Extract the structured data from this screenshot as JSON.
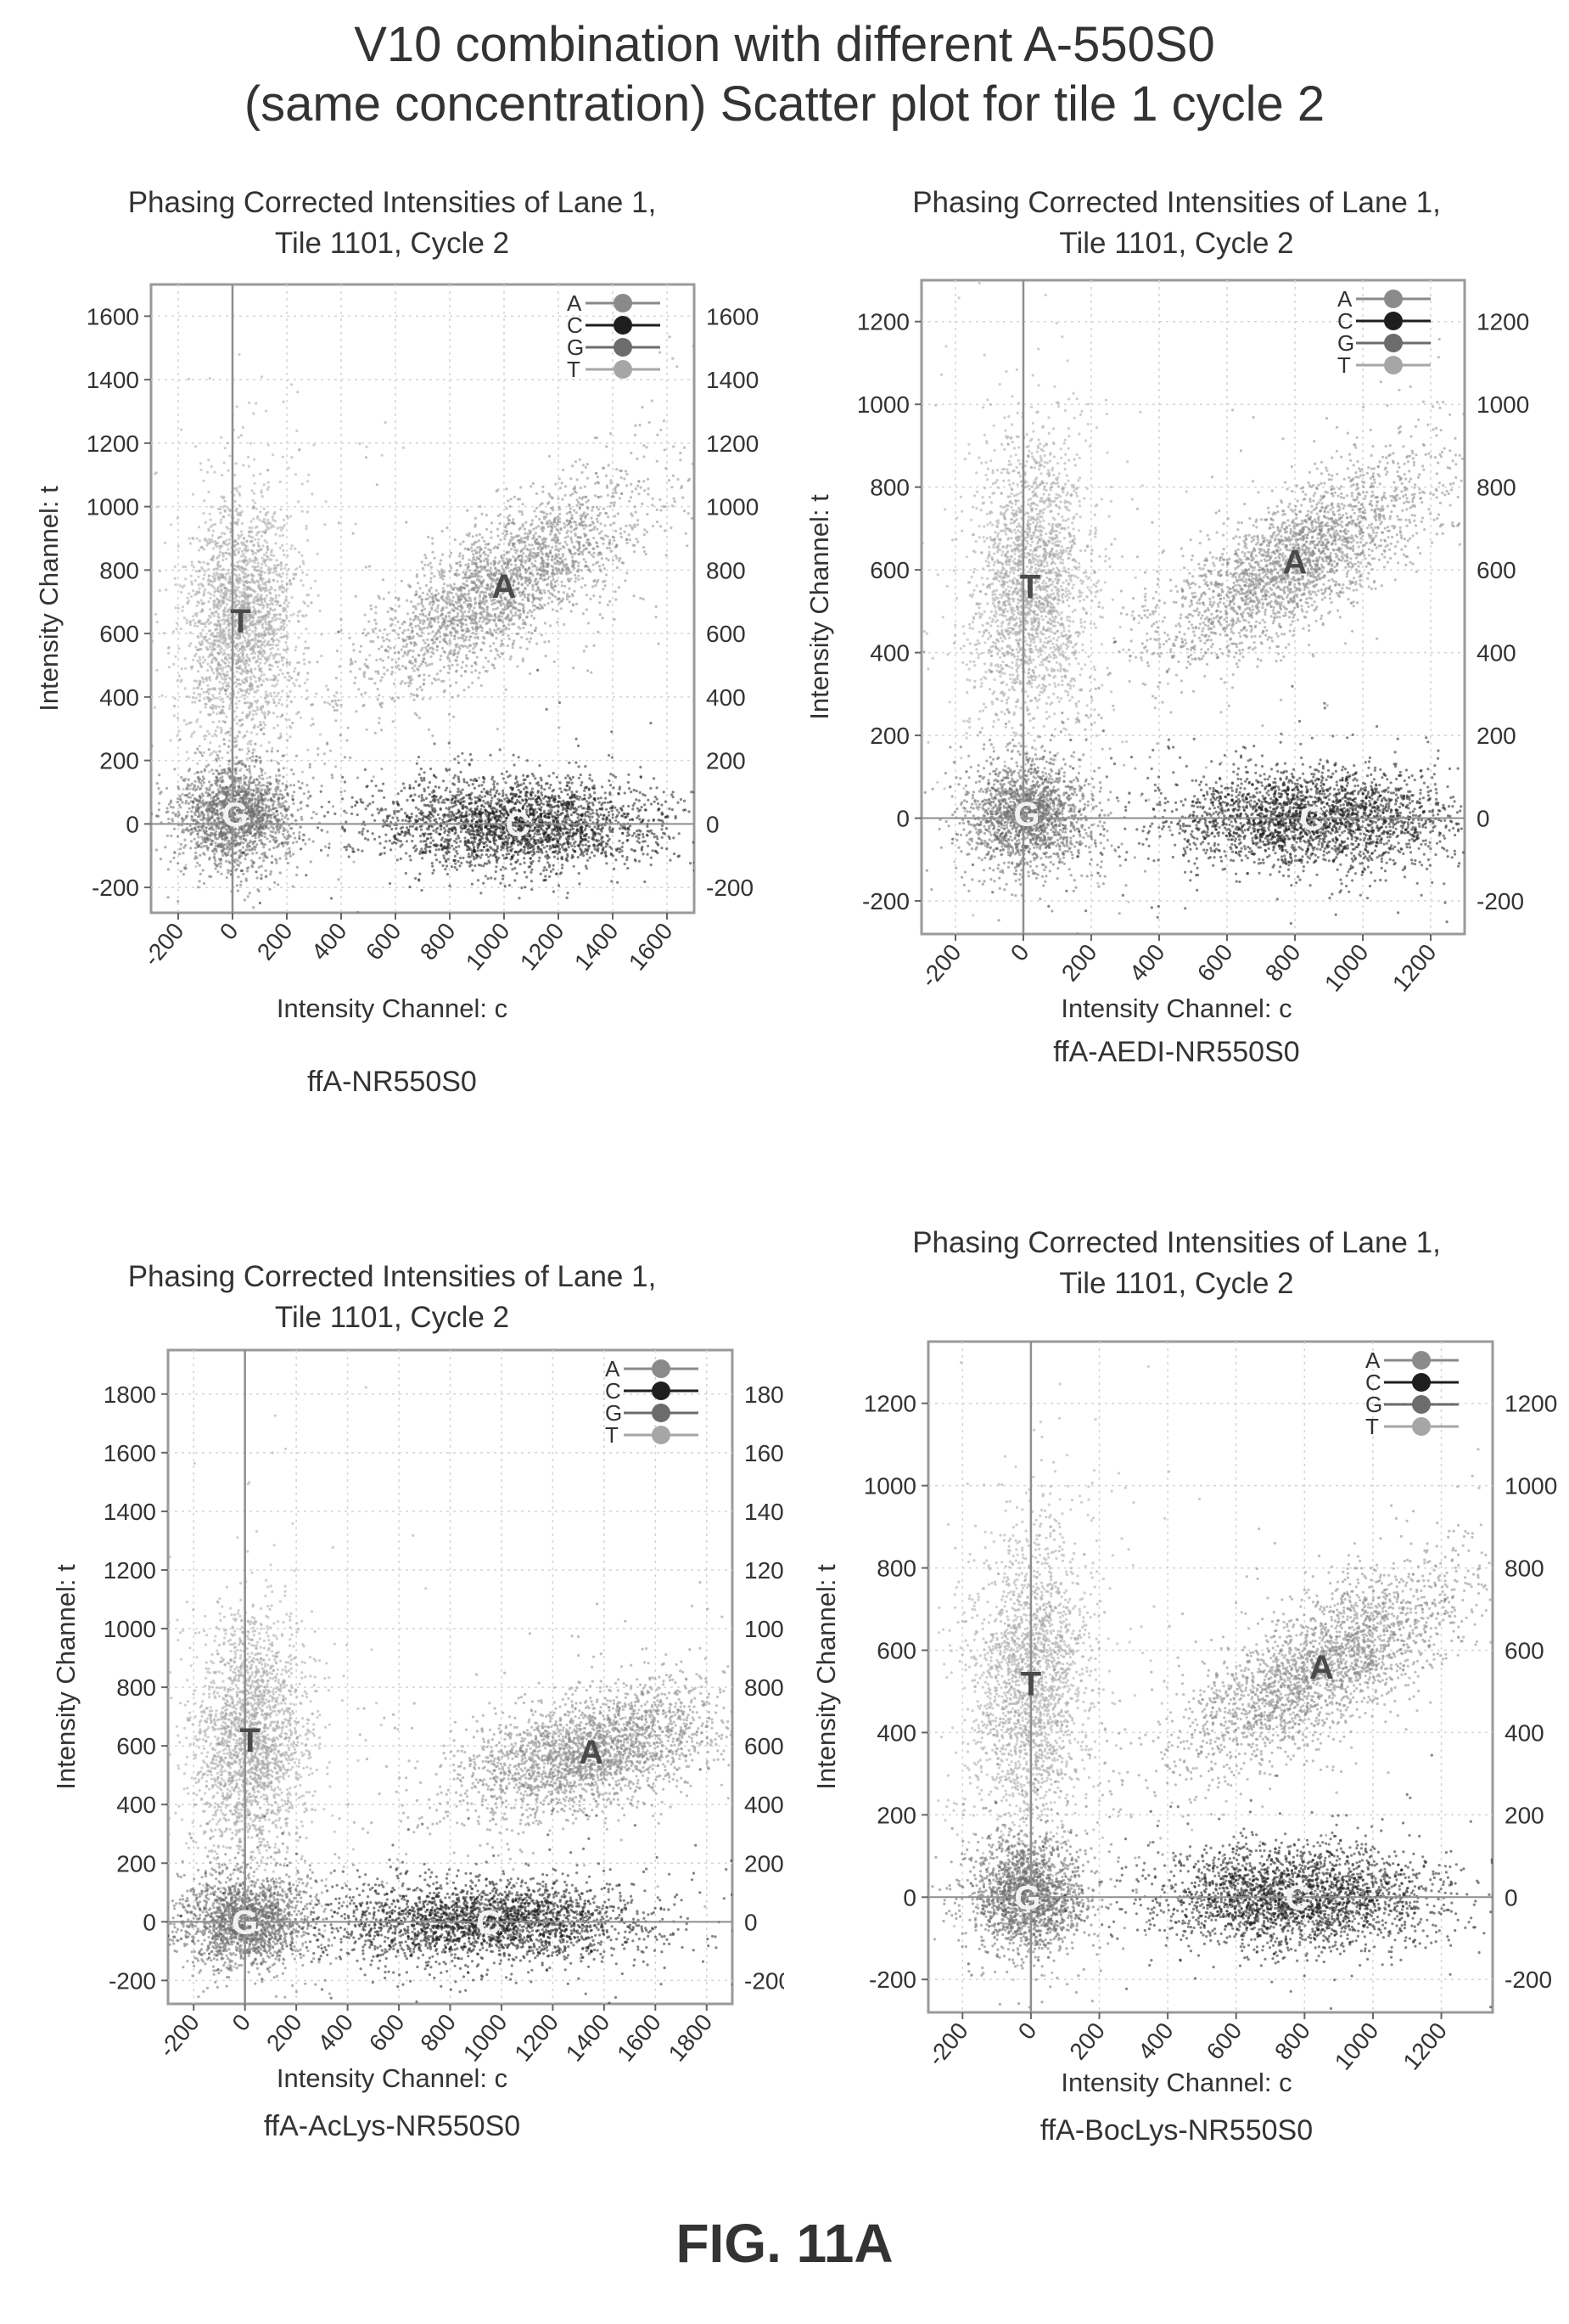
{
  "figure": {
    "title_line1": "V10 combination with different A-550S0",
    "title_line2": "(same concentration) Scatter plot for tile 1 cycle 2",
    "label": "FIG. 11A"
  },
  "colors": {
    "A": "#8a8a8a",
    "C": "#1e1e1e",
    "G": "#6c6c6c",
    "T": "#a6a6a6"
  },
  "chart_data": [
    {
      "type": "scatter",
      "title_line1": "Phasing Corrected Intensities of Lane 1,",
      "title_line2": "Tile 1101, Cycle 2",
      "xlabel": "Intensity Channel: c",
      "ylabel": "Intensity Channel: t",
      "caption": "ffA-NR550S0",
      "xlim": [
        -300,
        1700
      ],
      "ylim": [
        -280,
        1700
      ],
      "xticks": [
        -200,
        0,
        200,
        400,
        600,
        800,
        1000,
        1200,
        1400,
        1600
      ],
      "yticks": [
        -200,
        0,
        200,
        400,
        600,
        800,
        1000,
        1200,
        1400,
        1600
      ],
      "legend": {
        "position": "top-right",
        "entries": [
          "A",
          "C",
          "G",
          "T"
        ]
      },
      "grid": true,
      "clusters": [
        {
          "name": "A",
          "label": "A",
          "cx": 1000,
          "cy": 750,
          "sx": 250,
          "sy": 160,
          "corr": 0.75
        },
        {
          "name": "C",
          "label": "C",
          "cx": 1050,
          "cy": 0,
          "sx": 260,
          "sy": 70,
          "corr": 0.0
        },
        {
          "name": "G",
          "label": "G",
          "cx": 10,
          "cy": 30,
          "sx": 110,
          "sy": 80,
          "corr": 0.0
        },
        {
          "name": "T",
          "label": "T",
          "cx": 30,
          "cy": 640,
          "sx": 100,
          "sy": 200,
          "corr": 0.1
        }
      ]
    },
    {
      "type": "scatter",
      "title_line1": "Phasing Corrected Intensities of Lane 1,",
      "title_line2": "Tile 1101, Cycle 2",
      "xlabel": "Intensity Channel: c",
      "ylabel": "Intensity Channel: t",
      "caption": "ffA-AEDI-NR550S0",
      "xlim": [
        -300,
        1300
      ],
      "ylim": [
        -280,
        1300
      ],
      "xticks": [
        -200,
        0,
        200,
        400,
        600,
        800,
        1000,
        1200
      ],
      "yticks": [
        -200,
        0,
        200,
        400,
        600,
        800,
        1000,
        1200
      ],
      "legend": {
        "position": "top-right",
        "entries": [
          "A",
          "C",
          "G",
          "T"
        ]
      },
      "grid": true,
      "clusters": [
        {
          "name": "A",
          "label": "A",
          "cx": 800,
          "cy": 620,
          "sx": 200,
          "sy": 120,
          "corr": 0.75
        },
        {
          "name": "C",
          "label": "C",
          "cx": 850,
          "cy": 0,
          "sx": 210,
          "sy": 60,
          "corr": 0.0
        },
        {
          "name": "G",
          "label": "G",
          "cx": 10,
          "cy": 10,
          "sx": 90,
          "sy": 65,
          "corr": 0.0
        },
        {
          "name": "T",
          "label": "T",
          "cx": 20,
          "cy": 560,
          "sx": 85,
          "sy": 170,
          "corr": 0.1
        }
      ]
    },
    {
      "type": "scatter",
      "title_line1": "Phasing Corrected Intensities of Lane 1,",
      "title_line2": "Tile 1101, Cycle 2",
      "xlabel": "Intensity Channel: c",
      "ylabel": "Intensity Channel: t",
      "caption": "ffA-AcLys-NR550S0",
      "xlim": [
        -300,
        1900
      ],
      "ylim": [
        -280,
        1950
      ],
      "xticks": [
        -200,
        0,
        200,
        400,
        600,
        800,
        1000,
        1200,
        1400,
        1600,
        1800
      ],
      "yticks": [
        -200,
        0,
        200,
        400,
        600,
        800,
        1000,
        1200,
        1400,
        1600,
        1800
      ],
      "legend": {
        "position": "top-right",
        "entries": [
          "A",
          "C",
          "G",
          "T"
        ]
      },
      "grid": true,
      "clusters": [
        {
          "name": "A",
          "label": "A",
          "cx": 1350,
          "cy": 580,
          "sx": 260,
          "sy": 110,
          "corr": 0.5
        },
        {
          "name": "C",
          "label": "C",
          "cx": 950,
          "cy": 0,
          "sx": 300,
          "sy": 70,
          "corr": 0.0
        },
        {
          "name": "G",
          "label": "G",
          "cx": 0,
          "cy": 0,
          "sx": 120,
          "sy": 80,
          "corr": 0.0
        },
        {
          "name": "T",
          "label": "T",
          "cx": 20,
          "cy": 620,
          "sx": 110,
          "sy": 200,
          "corr": 0.1
        }
      ]
    },
    {
      "type": "scatter",
      "title_line1": "Phasing Corrected Intensities of Lane 1,",
      "title_line2": "Tile 1101, Cycle 2",
      "xlabel": "Intensity Channel: c",
      "ylabel": "Intensity Channel: t",
      "caption": "ffA-BocLys-NR550S0",
      "xlim": [
        -300,
        1350
      ],
      "ylim": [
        -280,
        1350
      ],
      "xticks": [
        -200,
        0,
        200,
        400,
        600,
        800,
        1000,
        1200
      ],
      "yticks": [
        -200,
        0,
        200,
        400,
        600,
        800,
        1000,
        1200
      ],
      "legend": {
        "position": "top-right",
        "entries": [
          "A",
          "C",
          "G",
          "T"
        ]
      },
      "grid": true,
      "clusters": [
        {
          "name": "A",
          "label": "A",
          "cx": 850,
          "cy": 560,
          "sx": 210,
          "sy": 120,
          "corr": 0.75
        },
        {
          "name": "C",
          "label": "C",
          "cx": 780,
          "cy": 0,
          "sx": 200,
          "sy": 60,
          "corr": 0.0
        },
        {
          "name": "G",
          "label": "G",
          "cx": -10,
          "cy": 0,
          "sx": 85,
          "sy": 65,
          "corr": 0.0
        },
        {
          "name": "T",
          "label": "T",
          "cx": 0,
          "cy": 520,
          "sx": 85,
          "sy": 180,
          "corr": 0.1
        }
      ]
    }
  ]
}
